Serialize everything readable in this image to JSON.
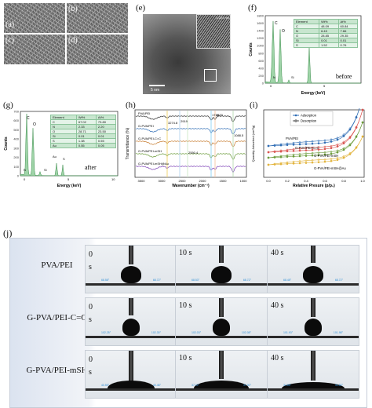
{
  "panels": {
    "a": "(a)",
    "b": "(b)",
    "c": "(c)",
    "d": "(d)",
    "e": "(e)",
    "f": "(f)",
    "g": "(g)",
    "h": "(h)",
    "i": "(i)",
    "j": "(j)"
  },
  "tem": {
    "lattice": "0.221 nm",
    "scale": "5 nm"
  },
  "eds_before": {
    "ylabel": "Counts",
    "xlabel": "Energy (keV)",
    "tag": "before",
    "peaks": [
      "C",
      "O",
      "N",
      "Si",
      "S"
    ],
    "table": {
      "headers": [
        "Element",
        "Wt%",
        "At%"
      ],
      "rows": [
        [
          "C",
          "48.09",
          "60.84"
        ],
        [
          "N",
          "6.43",
          "7.66"
        ],
        [
          "O",
          "28.85",
          "29.35"
        ],
        [
          "Si",
          "0.01",
          "0.01"
        ],
        [
          "S",
          "1.52",
          "0.76"
        ]
      ]
    },
    "xticks": [
      "0",
      "5"
    ],
    "yticks": [
      "0",
      "200",
      "400",
      "600",
      "800",
      "1000",
      "1200",
      "1400",
      "1600",
      "1800"
    ]
  },
  "eds_after": {
    "ylabel": "Counts",
    "xlabel": "Energy (keV)",
    "tag": "after",
    "peaks": [
      "C",
      "O",
      "Au",
      "S",
      "N",
      "Si"
    ],
    "table": {
      "headers": [
        "Element",
        "Wt%",
        "At%"
      ],
      "rows": [
        [
          "C",
          "67.02",
          "73.80"
        ],
        [
          "N",
          "2.33",
          "2.20"
        ],
        [
          "O",
          "28.71",
          "23.50"
        ],
        [
          "Si",
          "0.01",
          "0.01"
        ],
        [
          "S",
          "1.38",
          "0.55"
        ],
        [
          "Au",
          "0.55",
          "0.05"
        ]
      ]
    },
    "xticks": [
      "0",
      "5",
      "10"
    ],
    "yticks": [
      "0",
      "100",
      "200",
      "300",
      "400",
      "500",
      "600",
      "700"
    ]
  },
  "ftir": {
    "ylabel": "Transmittance (%)",
    "xlabel": "Wavenumber (cm⁻¹)",
    "series": [
      "PVA/PEI",
      "G-PVA/PEI",
      "G-PVA/PEI-C=C",
      "G-PVA/PEI-mSH",
      "G-PVA/PEI-mSH@Au"
    ],
    "colors": [
      "#2c2c2c",
      "#2f6db5",
      "#c67b2e",
      "#6b9b3a",
      "#7b3fb5"
    ],
    "annotations": [
      "3274.8",
      "2919",
      "2550.4",
      "1715",
      "1633",
      "1088.5"
    ],
    "xticks": [
      "3500",
      "3000",
      "2500",
      "2000",
      "1500",
      "1000"
    ]
  },
  "bet": {
    "ylabel": "Quantity Adsorbed (cm³/g)",
    "xlabel": "Relative Presure (p/p₀)",
    "legend": [
      "Adsorption",
      "Desorption"
    ],
    "series": [
      "PVA/PEI",
      "G-PVA/PEI-C=C",
      "G-PVA/PEI-mSH",
      "G-PVA/PEI-mSH@Au"
    ],
    "colors": [
      "#2f6db5",
      "#d9534f",
      "#6b9b3a",
      "#e2b33a"
    ],
    "xticks": [
      "0.0",
      "0.2",
      "0.4",
      "0.6",
      "0.8",
      "1.0"
    ]
  },
  "contact": {
    "rows": [
      {
        "label": "PVA/PEI",
        "times": [
          "0 s",
          "10 s",
          "40 s"
        ],
        "angles": [
          [
            "68.58°",
            "68.72°"
          ],
          [
            "68.53°",
            "68.72°"
          ],
          [
            "68.45°",
            "68.72°"
          ]
        ]
      },
      {
        "label": "G-PVA/PEI-C=C",
        "times": [
          "0 s",
          "10 s",
          "40 s"
        ],
        "angles": [
          [
            "102.25°",
            "102.30°"
          ],
          [
            "102.03°",
            "102.08°"
          ],
          [
            "101.93°",
            "101.98°"
          ]
        ]
      },
      {
        "label": "G-PVA/PEI-mSH",
        "times": [
          "0 s",
          "10 s",
          "40 s"
        ],
        "angles": [
          [
            "40.55°",
            "40.48°"
          ],
          [
            "37.02°",
            "37.00°"
          ],
          [
            "34.86°",
            "34.80°"
          ]
        ]
      }
    ]
  }
}
